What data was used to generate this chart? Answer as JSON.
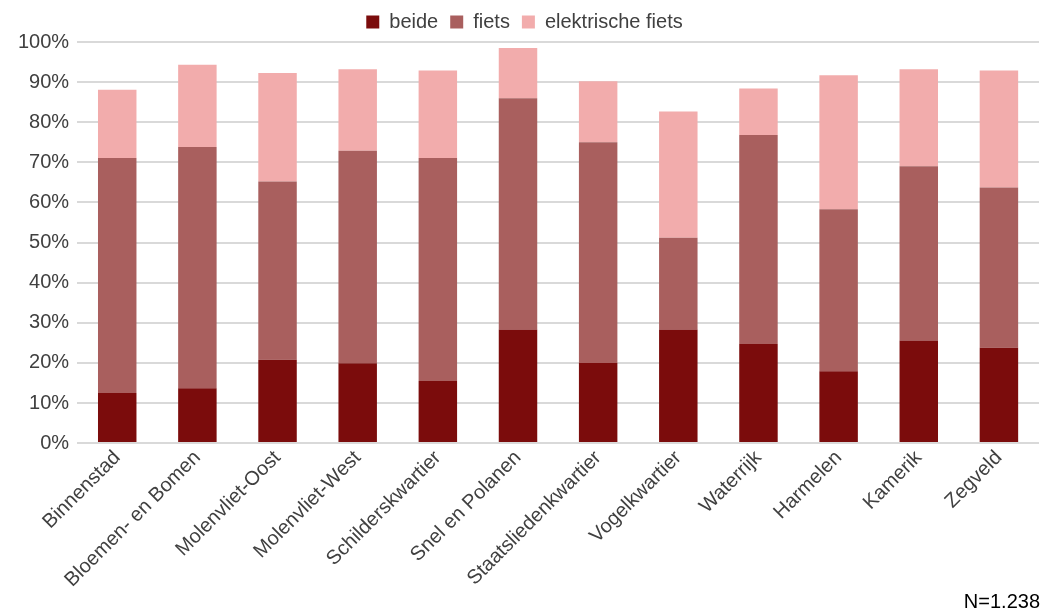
{
  "chart_data": {
    "type": "bar",
    "stacked": true,
    "legend": "top",
    "grid": "y",
    "categories": [
      "Binnenstad",
      "Bloemen- en Bomen",
      "Molenvliet-Oost",
      "Molenvliet-West",
      "Schilderskwartier",
      "Snel en Polanen",
      "Staatsliedenkwartier",
      "Vogelkwartier",
      "Waterrijk",
      "Harmelen",
      "Kamerik",
      "Zegveld"
    ],
    "series": [
      {
        "name": "beide",
        "color": "#7b0c0c",
        "values": [
          12.5,
          13.7,
          20.8,
          19.9,
          15.5,
          28.3,
          20.0,
          28.3,
          24.7,
          17.9,
          25.6,
          23.8
        ]
      },
      {
        "name": "fiets",
        "color": "#a95f5e",
        "values": [
          58.6,
          60.1,
          44.4,
          53.0,
          55.6,
          57.7,
          55.0,
          22.9,
          52.1,
          40.4,
          43.4,
          39.9
        ]
      },
      {
        "name": "elektrische fiets",
        "color": "#f2acac",
        "values": [
          17.0,
          20.5,
          27.1,
          20.3,
          21.8,
          12.5,
          15.2,
          31.5,
          11.6,
          33.4,
          24.2,
          29.2
        ]
      }
    ],
    "ylim": [
      0,
      100
    ],
    "yticks": [
      {
        "value": 0,
        "label": "0%"
      },
      {
        "value": 10,
        "label": "10%"
      },
      {
        "value": 20,
        "label": "20%"
      },
      {
        "value": 30,
        "label": "30%"
      },
      {
        "value": 40,
        "label": "40%"
      },
      {
        "value": 50,
        "label": "50%"
      },
      {
        "value": 60,
        "label": "60%"
      },
      {
        "value": 70,
        "label": "70%"
      },
      {
        "value": 80,
        "label": "80%"
      },
      {
        "value": 90,
        "label": "90%"
      },
      {
        "value": 100,
        "label": "100%"
      }
    ],
    "annotations": [
      "N=1.238"
    ]
  }
}
